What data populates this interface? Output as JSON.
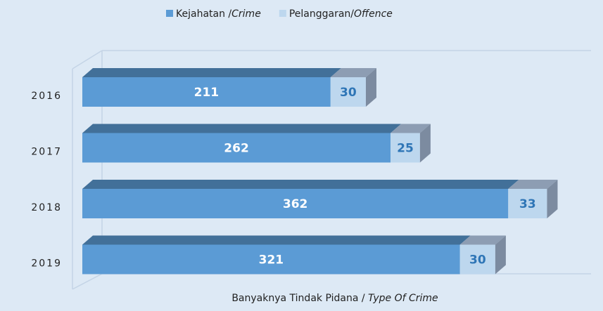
{
  "chart_data": {
    "type": "stacked_bar_horizontal",
    "categories": [
      "2016",
      "2017",
      "2018",
      "2019"
    ],
    "series": [
      {
        "name": "Kejahatan /Crime",
        "color": "#5b9bd5",
        "values": [
          211,
          262,
          362,
          321
        ]
      },
      {
        "name": "Pelanggaran/Offence",
        "color": "#bdd7ee",
        "values": [
          30,
          25,
          33,
          30
        ]
      }
    ],
    "xlabel": "Banyaknya Tindak Pidana / Type Of Crime",
    "xlim": [
      0,
      430
    ],
    "legend": "top"
  }
}
